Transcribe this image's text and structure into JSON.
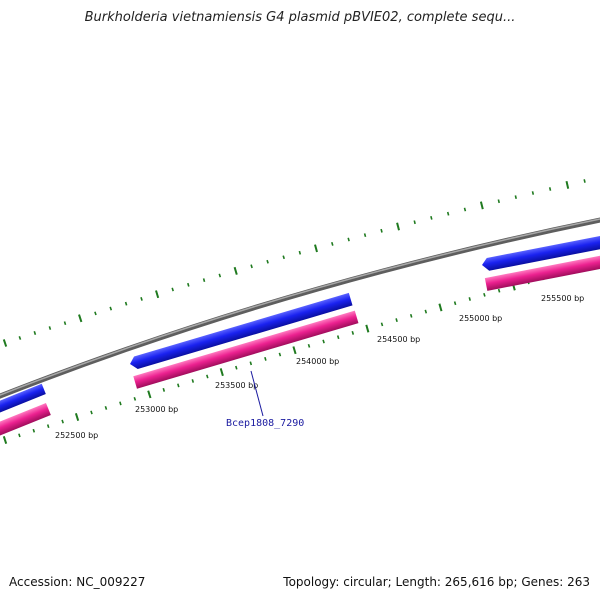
{
  "title": "Burkholderia vietnamiensis G4 plasmid pBVIE02, complete sequ...",
  "footer": {
    "accession": "Accession: NC_009227",
    "topology": "Topology: circular; Length: 265,616 bp; Genes: 263"
  },
  "genome": {
    "backbone_color": "#808080",
    "tick_color": "#1f7a1f",
    "position_labels": [
      "252500 bp",
      "253000 bp",
      "253500 bp",
      "254000 bp",
      "254500 bp",
      "255000 bp",
      "255500 bp"
    ]
  },
  "features": {
    "cds_color": "#0a14e6",
    "gene_color": "#e6148c",
    "labeled_gene": "Bcep1808_7290",
    "label_color": "#1a1aa0"
  }
}
